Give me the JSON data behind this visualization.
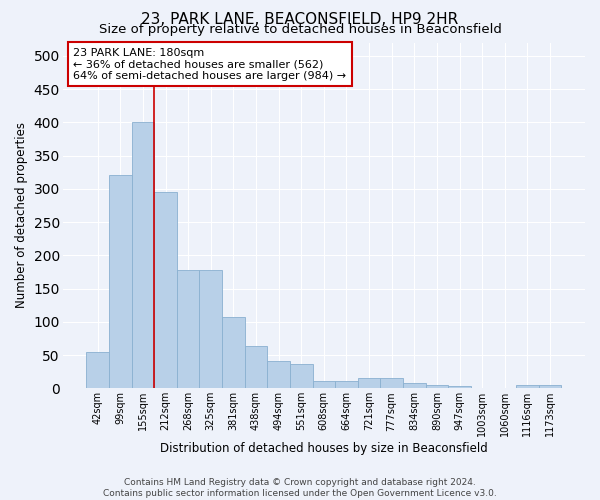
{
  "title": "23, PARK LANE, BEACONSFIELD, HP9 2HR",
  "subtitle": "Size of property relative to detached houses in Beaconsfield",
  "xlabel": "Distribution of detached houses by size in Beaconsfield",
  "ylabel": "Number of detached properties",
  "footer_line1": "Contains HM Land Registry data © Crown copyright and database right 2024.",
  "footer_line2": "Contains public sector information licensed under the Open Government Licence v3.0.",
  "categories": [
    "42sqm",
    "99sqm",
    "155sqm",
    "212sqm",
    "268sqm",
    "325sqm",
    "381sqm",
    "438sqm",
    "494sqm",
    "551sqm",
    "608sqm",
    "664sqm",
    "721sqm",
    "777sqm",
    "834sqm",
    "890sqm",
    "947sqm",
    "1003sqm",
    "1060sqm",
    "1116sqm",
    "1173sqm"
  ],
  "values": [
    55,
    320,
    400,
    295,
    178,
    178,
    107,
    63,
    41,
    36,
    11,
    11,
    15,
    15,
    8,
    5,
    3,
    1,
    0,
    5,
    5
  ],
  "bar_color": "#b8d0e8",
  "bar_edge_color": "#8ab0d0",
  "property_line_x": 2.5,
  "property_line_color": "#cc0000",
  "annotation_text": "23 PARK LANE: 180sqm\n← 36% of detached houses are smaller (562)\n64% of semi-detached houses are larger (984) →",
  "annotation_box_facecolor": "#ffffff",
  "annotation_box_edgecolor": "#cc0000",
  "ylim": [
    0,
    520
  ],
  "yticks": [
    0,
    50,
    100,
    150,
    200,
    250,
    300,
    350,
    400,
    450,
    500
  ],
  "background_color": "#eef2fa",
  "plot_bg_color": "#eef2fa",
  "grid_color": "#ffffff",
  "title_fontsize": 11,
  "subtitle_fontsize": 9.5,
  "axis_label_fontsize": 8.5,
  "tick_fontsize": 7,
  "footer_fontsize": 6.5,
  "annotation_fontsize": 8
}
